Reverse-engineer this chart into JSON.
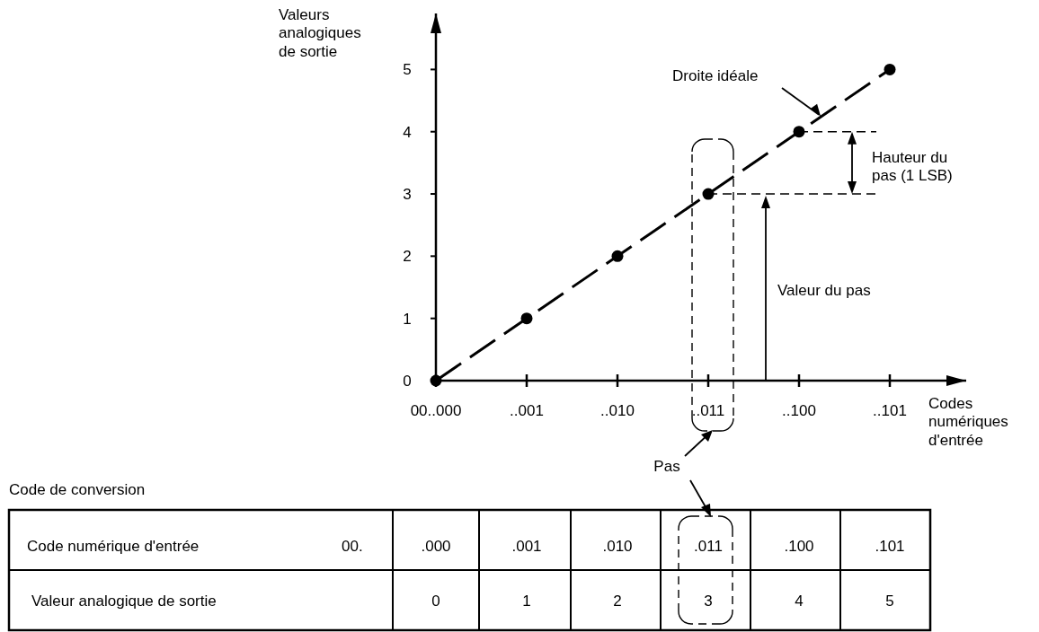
{
  "chart_data": {
    "type": "line",
    "xlabel": "Codes\nnumériques\nd'entrée",
    "ylabel": "Valeurs\nanalogiques\nde sortie",
    "categories": [
      "00..000",
      "..001",
      "..010",
      "..011",
      "..100",
      "..101"
    ],
    "values": [
      0,
      1,
      2,
      3,
      4,
      5
    ],
    "color": "#000000",
    "marker": "circle",
    "line_style": "dashed",
    "ylim": [
      0,
      5.9
    ],
    "yticks": [
      0,
      1,
      2,
      3,
      4,
      5
    ],
    "grid": false,
    "data_labels": true,
    "ref_lines": [
      {
        "axis": "y",
        "value": 4,
        "line_style": "dashed"
      },
      {
        "axis": "y",
        "value": 3,
        "line_style": "dashed"
      }
    ],
    "annotations": [
      "Droite idéale",
      "Hauteur du\npas (1 LSB)",
      "Valeur du pas",
      "Pas",
      "Code de conversion",
      "Code numérique d'entrée",
      "00.",
      ".000",
      ".001",
      ".010",
      ".011",
      ".100",
      ".101",
      "Valeur analogique de sortie"
    ]
  }
}
